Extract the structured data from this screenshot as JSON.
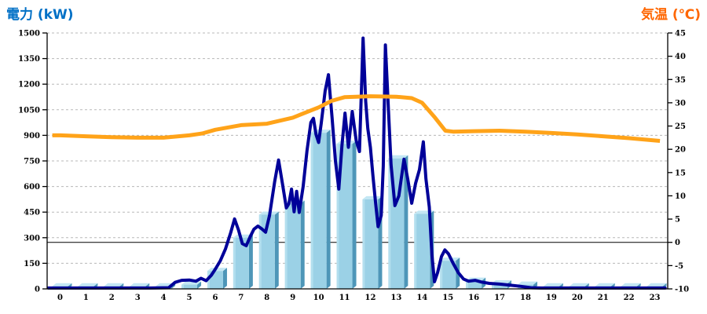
{
  "titles": {
    "left": "電力 (kW)",
    "left_color": "#0070C6",
    "right": "気温 (℃)",
    "right_color": "#FF6600"
  },
  "chart_data": {
    "type": "combo",
    "x_axis": {
      "labels": [
        "0",
        "1",
        "2",
        "3",
        "4",
        "5",
        "6",
        "7",
        "8",
        "9",
        "10",
        "11",
        "12",
        "13",
        "14",
        "15",
        "16",
        "17",
        "18",
        "19",
        "20",
        "21",
        "22",
        "23"
      ]
    },
    "y_left": {
      "title": "電力 (kW)",
      "min": 0,
      "max": 1500,
      "step": 150,
      "tick_labels": [
        "0",
        "150",
        "300",
        "450",
        "600",
        "750",
        "900",
        "1050",
        "1200",
        "1350",
        "1500"
      ]
    },
    "y_right": {
      "title": "気温 (℃)",
      "min": -10,
      "max": 45,
      "step": 5,
      "tick_labels": [
        "-10",
        "-5",
        "0",
        "5",
        "10",
        "15",
        "20",
        "25",
        "30",
        "35",
        "40",
        "45"
      ]
    },
    "grid": {
      "style": "dashed",
      "color": "#b8b8b8",
      "at_left_axis_ticks": true
    },
    "zero_temp_line": {
      "value_right_axis": 0,
      "color": "#000000"
    },
    "bars": {
      "name": "hourly-energy",
      "axis": "left",
      "face_color": "#9BD1E6",
      "side_color": "#4E96B8",
      "top_color": "#C3E7F4",
      "hours": [
        0,
        1,
        2,
        3,
        4,
        5,
        6,
        7,
        8,
        9,
        10,
        11,
        12,
        13,
        14,
        15,
        16,
        17,
        18,
        19,
        20,
        21,
        22,
        23
      ],
      "values": [
        15,
        15,
        15,
        15,
        15,
        25,
        105,
        300,
        435,
        500,
        915,
        850,
        525,
        765,
        440,
        165,
        48,
        32,
        25,
        15,
        15,
        15,
        15,
        15
      ]
    },
    "power_line": {
      "name": "instantaneous-power",
      "axis": "left",
      "color": "#000099",
      "points": [
        [
          -0.45,
          5
        ],
        [
          0.5,
          5
        ],
        [
          1.5,
          5
        ],
        [
          2.5,
          5
        ],
        [
          3.5,
          5
        ],
        [
          4.2,
          7
        ],
        [
          4.45,
          38
        ],
        [
          4.7,
          50
        ],
        [
          5,
          52
        ],
        [
          5.25,
          45
        ],
        [
          5.45,
          62
        ],
        [
          5.65,
          48
        ],
        [
          5.85,
          80
        ],
        [
          6,
          115
        ],
        [
          6.2,
          165
        ],
        [
          6.4,
          235
        ],
        [
          6.6,
          330
        ],
        [
          6.75,
          410
        ],
        [
          6.9,
          345
        ],
        [
          7.05,
          265
        ],
        [
          7.2,
          253
        ],
        [
          7.35,
          305
        ],
        [
          7.5,
          350
        ],
        [
          7.65,
          368
        ],
        [
          7.8,
          352
        ],
        [
          7.95,
          332
        ],
        [
          8.1,
          430
        ],
        [
          8.3,
          630
        ],
        [
          8.45,
          755
        ],
        [
          8.6,
          618
        ],
        [
          8.75,
          475
        ],
        [
          8.85,
          500
        ],
        [
          8.95,
          585
        ],
        [
          9.05,
          452
        ],
        [
          9.15,
          572
        ],
        [
          9.25,
          448
        ],
        [
          9.4,
          600
        ],
        [
          9.55,
          810
        ],
        [
          9.7,
          975
        ],
        [
          9.8,
          1000
        ],
        [
          9.9,
          905
        ],
        [
          10,
          858
        ],
        [
          10.1,
          970
        ],
        [
          10.25,
          1160
        ],
        [
          10.38,
          1255
        ],
        [
          10.52,
          1005
        ],
        [
          10.65,
          750
        ],
        [
          10.78,
          585
        ],
        [
          10.9,
          840
        ],
        [
          11.02,
          1030
        ],
        [
          11.15,
          830
        ],
        [
          11.3,
          1040
        ],
        [
          11.45,
          870
        ],
        [
          11.58,
          805
        ],
        [
          11.72,
          1470
        ],
        [
          11.82,
          1100
        ],
        [
          11.9,
          940
        ],
        [
          12,
          830
        ],
        [
          12.1,
          660
        ],
        [
          12.2,
          510
        ],
        [
          12.3,
          365
        ],
        [
          12.42,
          430
        ],
        [
          12.5,
          720
        ],
        [
          12.58,
          1430
        ],
        [
          12.7,
          1048
        ],
        [
          12.8,
          728
        ],
        [
          12.95,
          488
        ],
        [
          13.1,
          545
        ],
        [
          13.3,
          760
        ],
        [
          13.45,
          640
        ],
        [
          13.6,
          502
        ],
        [
          13.75,
          620
        ],
        [
          13.9,
          700
        ],
        [
          14.05,
          862
        ],
        [
          14.15,
          645
        ],
        [
          14.28,
          480
        ],
        [
          14.38,
          200
        ],
        [
          14.48,
          42
        ],
        [
          14.6,
          95
        ],
        [
          14.75,
          190
        ],
        [
          14.88,
          228
        ],
        [
          15.02,
          205
        ],
        [
          15.2,
          150
        ],
        [
          15.4,
          95
        ],
        [
          15.6,
          58
        ],
        [
          15.8,
          45
        ],
        [
          16.05,
          50
        ],
        [
          16.3,
          40
        ],
        [
          16.6,
          32
        ],
        [
          17,
          28
        ],
        [
          17.4,
          22
        ],
        [
          17.8,
          15
        ],
        [
          18.2,
          7
        ],
        [
          18.6,
          5
        ],
        [
          19.5,
          5
        ],
        [
          21,
          5
        ],
        [
          22.5,
          5
        ],
        [
          23.4,
          5
        ]
      ]
    },
    "temperature_line": {
      "name": "air-temperature",
      "axis": "right",
      "color": "#FFA319",
      "points": [
        [
          -0.3,
          23
        ],
        [
          0,
          23
        ],
        [
          1,
          22.8
        ],
        [
          2,
          22.6
        ],
        [
          3,
          22.5
        ],
        [
          4,
          22.5
        ],
        [
          5,
          23
        ],
        [
          5.5,
          23.4
        ],
        [
          6,
          24.2
        ],
        [
          7,
          25.2
        ],
        [
          8,
          25.5
        ],
        [
          9,
          26.8
        ],
        [
          10,
          29
        ],
        [
          10.5,
          30.4
        ],
        [
          11,
          31.2
        ],
        [
          12,
          31.4
        ],
        [
          13,
          31.3
        ],
        [
          13.6,
          31
        ],
        [
          14,
          30
        ],
        [
          14.5,
          26.8
        ],
        [
          14.9,
          24
        ],
        [
          15.2,
          23.8
        ],
        [
          16,
          23.9
        ],
        [
          17,
          24
        ],
        [
          18,
          23.8
        ],
        [
          19,
          23.5
        ],
        [
          20,
          23.2
        ],
        [
          21,
          22.8
        ],
        [
          22,
          22.4
        ],
        [
          23.2,
          21.8
        ]
      ]
    }
  }
}
